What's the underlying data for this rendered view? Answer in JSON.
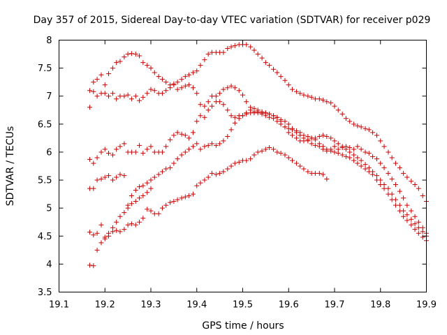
{
  "chart_data": {
    "type": "scatter",
    "title": "Day 357 of 2015, Sidereal Day-to-day VTEC variation (SDTVAR) for receiver p029",
    "xlabel": "GPS time / hours",
    "ylabel": "SDTVAR / TECUs",
    "xlim": [
      19.1,
      19.9
    ],
    "ylim": [
      3.5,
      8
    ],
    "xticks": [
      "19.1",
      "19.2",
      "19.3",
      "19.4",
      "19.5",
      "19.6",
      "19.7",
      "19.8",
      "19.9"
    ],
    "yticks": [
      "3.5",
      "4",
      "4.5",
      "5",
      "5.5",
      "6",
      "6.5",
      "7",
      "7.5",
      "8"
    ],
    "grid": false,
    "marker": "+",
    "color": "#cc0000",
    "series": [
      {
        "name": "series-1",
        "x": [
          19.167,
          19.175,
          19.183,
          19.192,
          19.2,
          19.208,
          19.217,
          19.225,
          19.233,
          19.242,
          19.25,
          19.258,
          19.267,
          19.275,
          19.283,
          19.292,
          19.3,
          19.308,
          19.317,
          19.325,
          19.333,
          19.342,
          19.35,
          19.358,
          19.367,
          19.375,
          19.383,
          19.392,
          19.4,
          19.408,
          19.417,
          19.425,
          19.433,
          19.442,
          19.45,
          19.458,
          19.467,
          19.475,
          19.483,
          19.492,
          19.5,
          19.508,
          19.517,
          19.525,
          19.533,
          19.542,
          19.55,
          19.558,
          19.567,
          19.575,
          19.583,
          19.592,
          19.6,
          19.608,
          19.617,
          19.625,
          19.633,
          19.642,
          19.65,
          19.658,
          19.667,
          19.675,
          19.683,
          19.692,
          19.7,
          19.708,
          19.717,
          19.725,
          19.733,
          19.742,
          19.75,
          19.758,
          19.767,
          19.775,
          19.783,
          19.792,
          19.8,
          19.808,
          19.817,
          19.825,
          19.833,
          19.842,
          19.85,
          19.858,
          19.867,
          19.875,
          19.883,
          19.892,
          19.9
        ],
        "y": [
          6.8,
          7.25,
          7.3,
          7.38,
          7.2,
          7.4,
          7.5,
          7.6,
          7.62,
          7.7,
          7.75,
          7.76,
          7.75,
          7.72,
          7.6,
          7.55,
          7.5,
          7.42,
          7.35,
          7.3,
          7.25,
          7.2,
          7.22,
          7.25,
          7.3,
          7.35,
          7.38,
          7.42,
          7.45,
          7.55,
          7.65,
          7.75,
          7.78,
          7.78,
          7.78,
          7.78,
          7.85,
          7.88,
          7.9,
          7.92,
          7.92,
          7.92,
          7.88,
          7.82,
          7.75,
          7.68,
          7.6,
          7.55,
          7.48,
          7.42,
          7.35,
          7.28,
          7.2,
          7.12,
          7.08,
          7.05,
          7.02,
          7.0,
          6.98,
          6.95,
          6.95,
          6.93,
          6.9,
          6.88,
          6.82,
          6.75,
          6.68,
          6.6,
          6.55,
          6.5,
          6.47,
          6.45,
          6.42,
          6.4,
          6.35,
          6.3,
          6.2,
          6.1,
          6.0,
          5.9,
          5.8,
          5.72,
          5.62,
          5.55,
          5.48,
          5.42,
          5.35,
          5.22,
          5.12
        ]
      },
      {
        "name": "series-2",
        "x": [
          19.167,
          19.175,
          19.183,
          19.192,
          19.2,
          19.208,
          19.217,
          19.225,
          19.233,
          19.242,
          19.25,
          19.258,
          19.267,
          19.275,
          19.283,
          19.292,
          19.3,
          19.308,
          19.317,
          19.325,
          19.333,
          19.342,
          19.35,
          19.358,
          19.367,
          19.375,
          19.383,
          19.392,
          19.4,
          19.408,
          19.417,
          19.425,
          19.433,
          19.442,
          19.45,
          19.458,
          19.467,
          19.475,
          19.483,
          19.492,
          19.5,
          19.508,
          19.517,
          19.525,
          19.533,
          19.542,
          19.55,
          19.558,
          19.567,
          19.575,
          19.583,
          19.592,
          19.6,
          19.608,
          19.617,
          19.625,
          19.633,
          19.642,
          19.65,
          19.658,
          19.667,
          19.675,
          19.683,
          19.692,
          19.7,
          19.708,
          19.717,
          19.725,
          19.733,
          19.742,
          19.75,
          19.758,
          19.767,
          19.775,
          19.783,
          19.792,
          19.8,
          19.808,
          19.817,
          19.825,
          19.833,
          19.842,
          19.85,
          19.858,
          19.867,
          19.875,
          19.883,
          19.892,
          19.9
        ],
        "y": [
          7.1,
          7.08,
          7.0,
          7.05,
          7.05,
          7.0,
          7.05,
          6.95,
          7.0,
          7.0,
          7.02,
          6.95,
          7.0,
          6.92,
          6.98,
          7.05,
          7.12,
          7.1,
          7.05,
          7.05,
          7.1,
          7.15,
          7.2,
          7.12,
          7.15,
          7.18,
          7.2,
          7.15,
          7.05,
          6.85,
          6.82,
          6.9,
          7.0,
          7.0,
          7.05,
          7.12,
          7.15,
          7.18,
          7.15,
          7.1,
          7.02,
          6.9,
          6.8,
          6.72,
          6.7,
          6.7,
          6.7,
          6.68,
          6.65,
          6.62,
          6.55,
          6.45,
          6.35,
          6.3,
          6.25,
          6.2,
          6.2,
          6.22,
          6.25,
          6.25,
          6.28,
          6.3,
          6.28,
          6.25,
          6.2,
          6.15,
          6.1,
          6.1,
          6.08,
          6.05,
          6.1,
          6.05,
          6.0,
          5.98,
          5.92,
          5.88,
          5.8,
          5.72,
          5.62,
          5.52,
          5.42,
          5.3,
          5.18,
          5.05,
          4.95,
          4.85,
          4.75,
          4.65,
          4.55
        ]
      },
      {
        "name": "series-3",
        "x": [
          19.167,
          19.175,
          19.183,
          19.192,
          19.2,
          19.208,
          19.217,
          19.225,
          19.233,
          19.242,
          19.25,
          19.258,
          19.267,
          19.275,
          19.283,
          19.292,
          19.3,
          19.308,
          19.317,
          19.325,
          19.333,
          19.342,
          19.35,
          19.358,
          19.367,
          19.375,
          19.383,
          19.392,
          19.4,
          19.408,
          19.417,
          19.425,
          19.433,
          19.442,
          19.45,
          19.458,
          19.467,
          19.475,
          19.483,
          19.492,
          19.5,
          19.508,
          19.517,
          19.525,
          19.533,
          19.542,
          19.55,
          19.558,
          19.567,
          19.575,
          19.583,
          19.592,
          19.6,
          19.608,
          19.617,
          19.625,
          19.633,
          19.642,
          19.65,
          19.658,
          19.667,
          19.675,
          19.683,
          19.692,
          19.7,
          19.708,
          19.717,
          19.725,
          19.733,
          19.742,
          19.75,
          19.758,
          19.767,
          19.775,
          19.783,
          19.792,
          19.8,
          19.808,
          19.817,
          19.825,
          19.833,
          19.842,
          19.85,
          19.858,
          19.867,
          19.875,
          19.883,
          19.892,
          19.9
        ],
        "y": [
          5.87,
          5.8,
          5.9,
          6.0,
          6.05,
          5.98,
          5.95,
          6.05,
          6.1,
          6.15,
          6.0,
          6.0,
          6.0,
          6.12,
          5.98,
          6.05,
          6.1,
          6.0,
          6.0,
          6.0,
          6.1,
          6.22,
          6.3,
          6.35,
          6.32,
          6.3,
          6.25,
          6.35,
          6.55,
          6.65,
          6.62,
          6.75,
          6.82,
          6.9,
          6.9,
          6.85,
          6.75,
          6.65,
          6.62,
          6.65,
          6.65,
          6.68,
          6.7,
          6.7,
          6.72,
          6.68,
          6.65,
          6.62,
          6.6,
          6.55,
          6.5,
          6.45,
          6.42,
          6.4,
          6.38,
          6.35,
          6.3,
          6.28,
          6.25,
          6.22,
          6.15,
          6.1,
          6.05,
          6.02,
          6.0,
          5.98,
          5.95,
          5.92,
          5.9,
          5.85,
          5.8,
          5.75,
          5.7,
          5.65,
          5.6,
          5.5,
          5.42,
          5.35,
          5.25,
          5.15,
          5.05,
          4.95,
          4.85,
          4.78,
          4.7,
          4.62,
          4.55,
          4.48,
          4.42
        ]
      },
      {
        "name": "series-4",
        "x": [
          19.167,
          19.175,
          19.183,
          19.192,
          19.2,
          19.208,
          19.217,
          19.225,
          19.233,
          19.242,
          19.25,
          19.258,
          19.267,
          19.275,
          19.283,
          19.292,
          19.3,
          19.308,
          19.317,
          19.325,
          19.333,
          19.342,
          19.35,
          19.358,
          19.367,
          19.375,
          19.383,
          19.392,
          19.4,
          19.408,
          19.417,
          19.425,
          19.433,
          19.442,
          19.45,
          19.458,
          19.467,
          19.475,
          19.483,
          19.492,
          19.5,
          19.508,
          19.517,
          19.525,
          19.533,
          19.542,
          19.55,
          19.558,
          19.567,
          19.575,
          19.583,
          19.592,
          19.6,
          19.608,
          19.617,
          19.625,
          19.633,
          19.642,
          19.65,
          19.658,
          19.667,
          19.675,
          19.683,
          19.692,
          19.7,
          19.708,
          19.717,
          19.725,
          19.733,
          19.742,
          19.75,
          19.758,
          19.767,
          19.775,
          19.783,
          19.792,
          19.8,
          19.808,
          19.817,
          19.825,
          19.833,
          19.842,
          19.85,
          19.858,
          19.867,
          19.875,
          19.883,
          19.892,
          19.9
        ],
        "y": [
          5.35,
          5.35,
          5.5,
          5.52,
          5.55,
          5.58,
          5.5,
          5.55,
          5.6,
          5.58,
          5.05,
          5.22,
          5.32,
          5.38,
          5.4,
          5.45,
          5.5,
          5.55,
          5.6,
          5.65,
          5.7,
          5.72,
          5.8,
          5.88,
          5.95,
          6.0,
          6.05,
          6.1,
          6.15,
          6.05,
          6.1,
          6.12,
          6.15,
          6.12,
          6.15,
          6.2,
          6.28,
          6.4,
          6.52,
          6.6,
          6.65,
          6.7,
          6.75,
          6.78,
          6.75,
          6.72,
          6.7,
          6.68,
          6.65,
          6.62,
          6.58,
          6.55,
          6.5,
          6.42,
          6.35,
          6.3,
          6.25,
          6.2,
          6.15,
          6.12,
          6.1,
          6.05,
          6.02,
          6.05,
          6.1,
          6.05,
          6.08,
          6.05,
          6.0,
          5.95,
          5.9,
          5.85,
          5.78,
          5.72,
          5.65,
          5.58,
          5.5,
          5.42,
          5.35,
          5.25,
          5.15,
          5.05,
          4.95,
          4.88,
          4.8,
          4.72,
          4.65,
          4.58,
          4.5
        ]
      },
      {
        "name": "series-5",
        "x": [
          19.167,
          19.175,
          19.183,
          19.192,
          19.2,
          19.208,
          19.217,
          19.225,
          19.233,
          19.242,
          19.25,
          19.258,
          19.267,
          19.275,
          19.283,
          19.292,
          19.3,
          19.308,
          19.317,
          19.325,
          19.333,
          19.342,
          19.35,
          19.358,
          19.367,
          19.375,
          19.383,
          19.392,
          19.4,
          19.408,
          19.417,
          19.425,
          19.433,
          19.442,
          19.45,
          19.458,
          19.467,
          19.475,
          19.483,
          19.492,
          19.5,
          19.508,
          19.517,
          19.525,
          19.533,
          19.542,
          19.55,
          19.558,
          19.567,
          19.575,
          19.583,
          19.592,
          19.6,
          19.608,
          19.617,
          19.625,
          19.633,
          19.642,
          19.65,
          19.658,
          19.667,
          19.675,
          19.683
        ],
        "y": [
          4.57,
          4.52,
          4.55,
          4.7,
          4.45,
          4.5,
          4.58,
          4.6,
          4.58,
          4.62,
          4.7,
          4.72,
          4.7,
          4.75,
          4.82,
          4.98,
          4.95,
          4.9,
          4.9,
          5.0,
          5.05,
          5.1,
          5.12,
          5.15,
          5.18,
          5.2,
          5.22,
          5.25,
          5.4,
          5.45,
          5.5,
          5.55,
          5.62,
          5.6,
          5.62,
          5.65,
          5.7,
          5.75,
          5.8,
          5.82,
          5.85,
          5.85,
          5.88,
          5.95,
          6.0,
          6.02,
          6.05,
          6.08,
          6.05,
          6.0,
          5.98,
          5.95,
          5.9,
          5.85,
          5.8,
          5.75,
          5.7,
          5.65,
          5.62,
          5.62,
          5.62,
          5.6,
          5.52
        ]
      },
      {
        "name": "series-6",
        "x": [
          19.167,
          19.175,
          19.183,
          19.192,
          19.2,
          19.208,
          19.217,
          19.225,
          19.233,
          19.242,
          19.25,
          19.258,
          19.267,
          19.275,
          19.283,
          19.292,
          19.3
        ],
        "y": [
          3.98,
          3.97,
          4.25,
          4.38,
          4.48,
          4.55,
          4.65,
          4.75,
          4.85,
          4.92,
          5.0,
          5.08,
          5.12,
          5.18,
          5.22,
          5.28,
          5.35
        ]
      }
    ]
  }
}
